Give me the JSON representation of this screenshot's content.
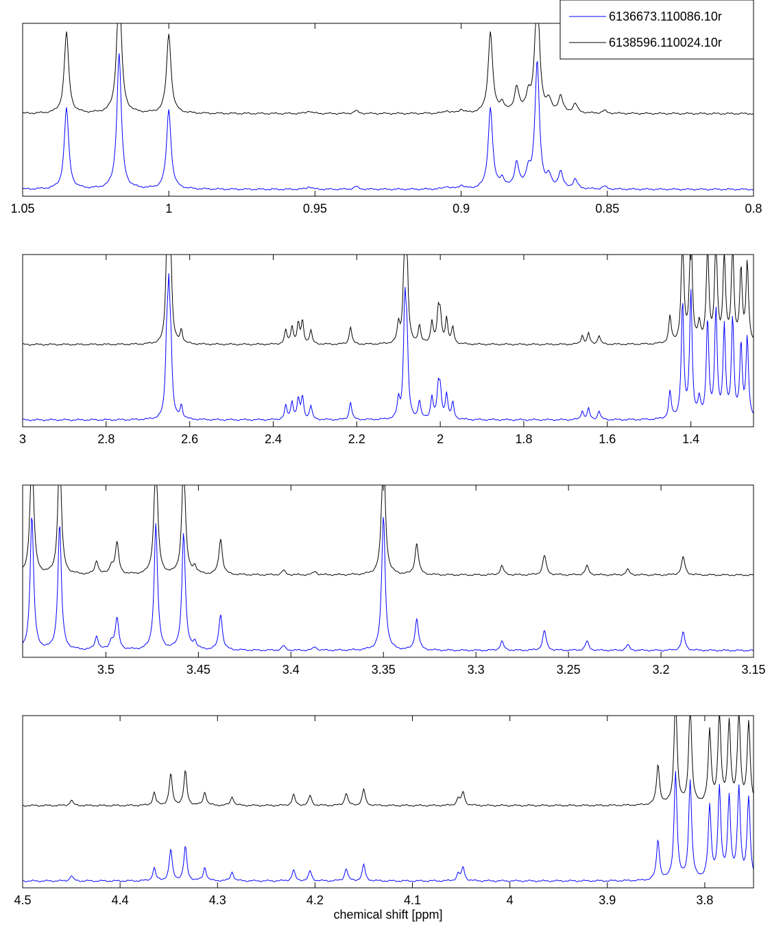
{
  "chart_data": [
    {
      "type": "line",
      "xlim": [
        1.05,
        0.8
      ],
      "x_reversed": true,
      "ticks": [
        "1.05",
        "1",
        "0.95",
        "0.9",
        "0.85",
        "0.8"
      ],
      "xlabel": "",
      "series_colors": [
        "#0000ff",
        "#000000"
      ],
      "peaks": [
        [
          1.035,
          0.9
        ],
        [
          1.017,
          1.5
        ],
        [
          1.0,
          0.88
        ],
        [
          0.952,
          0.03
        ],
        [
          0.936,
          0.03
        ],
        [
          0.905,
          0.03
        ],
        [
          0.9,
          0.04
        ],
        [
          0.89,
          0.9
        ],
        [
          0.886,
          0.1
        ],
        [
          0.881,
          0.28
        ],
        [
          0.877,
          0.18
        ],
        [
          0.874,
          1.4
        ],
        [
          0.87,
          0.12
        ],
        [
          0.866,
          0.18
        ],
        [
          0.861,
          0.1
        ],
        [
          0.851,
          0.03
        ]
      ]
    },
    {
      "type": "line",
      "xlim": [
        3.0,
        1.25
      ],
      "x_reversed": true,
      "ticks": [
        "3",
        "2.8",
        "2.6",
        "2.4",
        "2.2",
        "2",
        "1.8",
        "1.6",
        "1.4"
      ],
      "xlabel": "",
      "series_colors": [
        "#0000ff",
        "#000000"
      ],
      "peaks": [
        [
          2.655,
          0.7
        ],
        [
          2.65,
          1.2
        ],
        [
          2.645,
          0.6
        ],
        [
          2.62,
          0.15
        ],
        [
          2.37,
          0.15
        ],
        [
          2.355,
          0.2
        ],
        [
          2.34,
          0.22
        ],
        [
          2.33,
          0.25
        ],
        [
          2.31,
          0.15
        ],
        [
          2.215,
          0.2
        ],
        [
          2.1,
          0.2
        ],
        [
          2.085,
          1.2
        ],
        [
          2.08,
          0.8
        ],
        [
          2.05,
          0.2
        ],
        [
          2.02,
          0.25
        ],
        [
          2.005,
          0.32
        ],
        [
          2.0,
          0.3
        ],
        [
          1.985,
          0.28
        ],
        [
          1.97,
          0.18
        ],
        [
          1.66,
          0.1
        ],
        [
          1.645,
          0.12
        ],
        [
          1.62,
          0.1
        ],
        [
          1.45,
          0.3
        ],
        [
          1.42,
          1.3
        ],
        [
          1.4,
          1.4
        ],
        [
          1.38,
          0.2
        ],
        [
          1.36,
          1.1
        ],
        [
          1.34,
          1.2
        ],
        [
          1.32,
          1.0
        ],
        [
          1.3,
          1.1
        ],
        [
          1.28,
          0.8
        ],
        [
          1.265,
          0.9
        ]
      ]
    },
    {
      "type": "line",
      "xlim": [
        3.545,
        3.15
      ],
      "x_reversed": true,
      "ticks": [
        "3.5",
        "3.45",
        "3.4",
        "3.35",
        "3.3",
        "3.25",
        "3.2",
        "3.15"
      ],
      "xlabel": "",
      "series_colors": [
        "#0000ff",
        "#000000"
      ],
      "peaks": [
        [
          3.54,
          1.5
        ],
        [
          3.525,
          1.4
        ],
        [
          3.505,
          0.15
        ],
        [
          3.497,
          0.1
        ],
        [
          3.494,
          0.35
        ],
        [
          3.473,
          1.4
        ],
        [
          3.458,
          1.3
        ],
        [
          3.452,
          0.08
        ],
        [
          3.438,
          0.4
        ],
        [
          3.404,
          0.05
        ],
        [
          3.387,
          0.04
        ],
        [
          3.35,
          1.5
        ],
        [
          3.332,
          0.35
        ],
        [
          3.286,
          0.1
        ],
        [
          3.263,
          0.22
        ],
        [
          3.24,
          0.1
        ],
        [
          3.218,
          0.06
        ],
        [
          3.188,
          0.2
        ]
      ]
    },
    {
      "type": "line",
      "xlim": [
        4.5,
        3.75
      ],
      "x_reversed": true,
      "ticks": [
        "4.5",
        "4.4",
        "4.3",
        "4.2",
        "4.1",
        "4",
        "3.9",
        "3.8"
      ],
      "xlabel": "chemical shift [ppm]",
      "series_colors": [
        "#0000ff",
        "#000000"
      ],
      "peaks": [
        [
          4.45,
          0.06
        ],
        [
          4.365,
          0.14
        ],
        [
          4.348,
          0.35
        ],
        [
          4.333,
          0.38
        ],
        [
          4.313,
          0.15
        ],
        [
          4.285,
          0.1
        ],
        [
          4.222,
          0.12
        ],
        [
          4.205,
          0.11
        ],
        [
          4.168,
          0.14
        ],
        [
          4.15,
          0.18
        ],
        [
          4.048,
          0.15
        ],
        [
          4.053,
          0.08
        ],
        [
          3.848,
          0.45
        ],
        [
          3.83,
          1.2
        ],
        [
          3.815,
          1.1
        ],
        [
          3.795,
          0.8
        ],
        [
          3.785,
          1.0
        ],
        [
          3.775,
          0.9
        ],
        [
          3.765,
          1.0
        ],
        [
          3.755,
          0.9
        ]
      ]
    }
  ],
  "legend": {
    "entries": [
      "6136673.110086.10r",
      "6138596.110024.10r"
    ],
    "colors": [
      "#0000ff",
      "#000000"
    ]
  }
}
